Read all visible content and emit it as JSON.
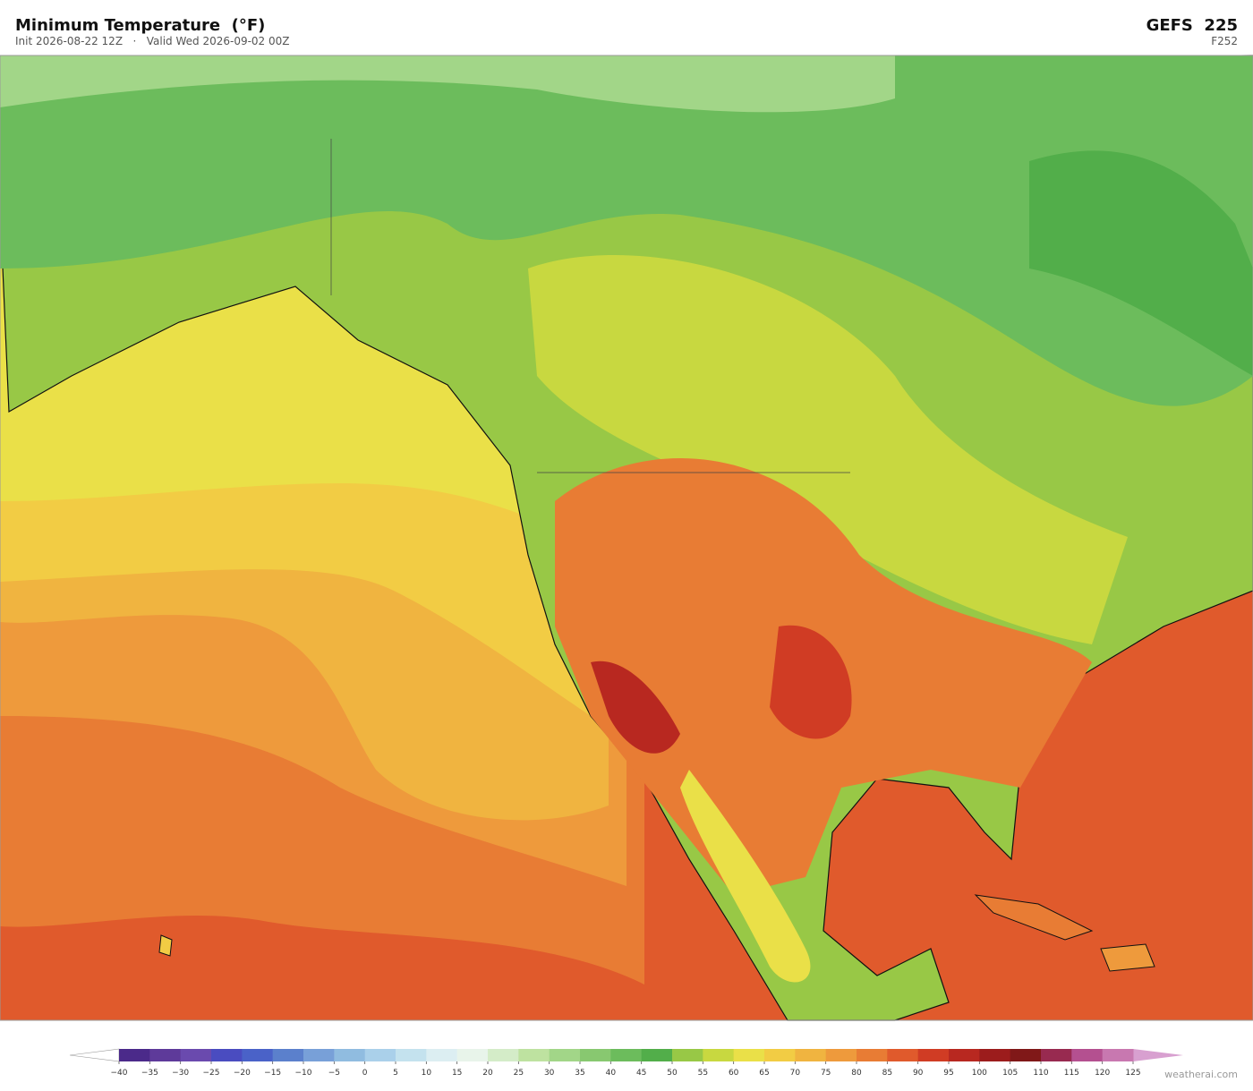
{
  "header": {
    "title": "Minimum Temperature  (°F)",
    "subtitle": "Init 2026-08-22 12Z   ·   Valid Wed 2026-09-02 00Z",
    "model": "GEFS  225",
    "forecast_hour": "F252"
  },
  "colorbar": {
    "ticks": [
      {
        "value": -40,
        "label": "−40"
      },
      {
        "value": -35,
        "label": "−35"
      },
      {
        "value": -30,
        "label": "−30"
      },
      {
        "value": -25,
        "label": "−25"
      },
      {
        "value": -20,
        "label": "−20"
      },
      {
        "value": -15,
        "label": "−15"
      },
      {
        "value": -10,
        "label": "−10"
      },
      {
        "value": -5,
        "label": "−5"
      },
      0,
      5,
      10,
      15,
      20,
      25,
      30,
      35,
      40,
      45,
      50,
      55,
      60,
      65,
      70,
      75,
      80,
      85,
      90,
      95,
      100,
      105,
      110,
      115,
      120,
      125
    ],
    "colors": [
      "#4b2a8a",
      "#5e3a9a",
      "#6a4aae",
      "#4a4cc0",
      "#4a62c8",
      "#5b80cc",
      "#78a0d8",
      "#90bce0",
      "#aad0ea",
      "#c4e2ee",
      "#dceef2",
      "#e8f4ea",
      "#d4ecc8",
      "#bee2a0",
      "#a2d688",
      "#88c870",
      "#6cbc5c",
      "#52ae4a",
      "#98c846",
      "#c8d840",
      "#eae048",
      "#f2cc44",
      "#f0b440",
      "#ee9a3c",
      "#e87c34",
      "#e05a2c",
      "#d03c24",
      "#b82820",
      "#9c1c1c",
      "#801818",
      "#982a50",
      "#b45090",
      "#c878b0"
    ],
    "under_color": "#ffffff",
    "over_color": "#d8a0d0"
  },
  "watermark": "weatherai.com"
}
